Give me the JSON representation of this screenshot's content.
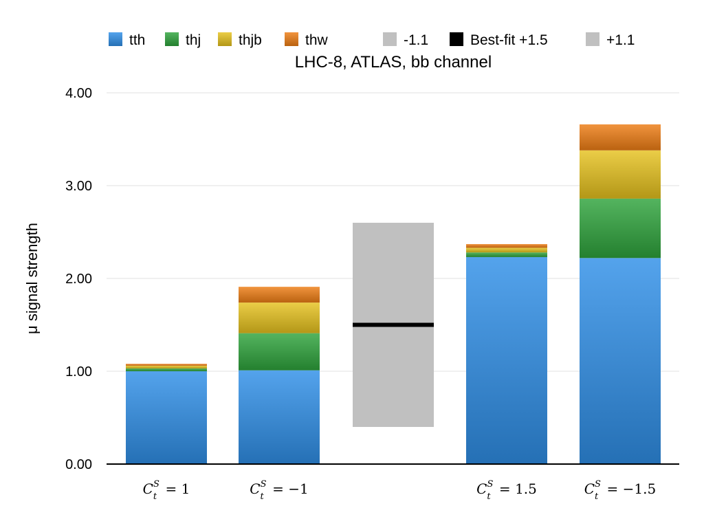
{
  "chart_data": {
    "type": "bar",
    "stacked": true,
    "title": "LHC-8, ATLAS, bb channel",
    "xlabel": "",
    "ylabel": "μ signal strength",
    "ylim": [
      0,
      4
    ],
    "yticks": [
      "0.00",
      "1.00",
      "2.00",
      "3.00",
      "4.00"
    ],
    "grid": true,
    "legend_position": "top",
    "categories": [
      {
        "sym": "C",
        "sup": "S",
        "sub": "t",
        "rel": "=",
        "val": "1"
      },
      {
        "sym": "C",
        "sup": "S",
        "sub": "t",
        "rel": "=",
        "val": "−1"
      },
      {
        "sym": "",
        "sup": "",
        "sub": "",
        "rel": "",
        "val": ""
      },
      {
        "sym": "C",
        "sup": "S",
        "sub": "t",
        "rel": "=",
        "val": "1.5"
      },
      {
        "sym": "C",
        "sup": "S",
        "sub": "t",
        "rel": "=",
        "val": "−1.5"
      }
    ],
    "series": [
      {
        "name": "tth",
        "color": "#2f8fe8",
        "values": [
          1.0,
          1.01,
          null,
          2.23,
          2.22
        ]
      },
      {
        "name": "thj",
        "color": "#2ea43c",
        "values": [
          0.03,
          0.4,
          null,
          0.05,
          0.64
        ]
      },
      {
        "name": "thjb",
        "color": "#e6c21e",
        "values": [
          0.03,
          0.33,
          null,
          0.05,
          0.52
        ]
      },
      {
        "name": "thw",
        "color": "#ee7d14",
        "values": [
          0.02,
          0.17,
          null,
          0.04,
          0.28
        ]
      }
    ],
    "measurement": {
      "category_index": 2,
      "best_fit": 1.5,
      "err_down": 1.1,
      "err_up": 1.1,
      "band_color": "#c0c0c0",
      "line_color": "#000000"
    },
    "legend": [
      {
        "label": "tth",
        "color": "#2f8fe8"
      },
      {
        "label": "thj",
        "color": "#2ea43c"
      },
      {
        "label": "thjb",
        "color": "#e6c21e"
      },
      {
        "label": "thw",
        "color": "#ee7d14"
      },
      {
        "label": "-1.1",
        "color": "#c0c0c0"
      },
      {
        "label": "Best-fit +1.5",
        "color": "#000000"
      },
      {
        "label": "+1.1",
        "color": "#c0c0c0"
      }
    ]
  }
}
